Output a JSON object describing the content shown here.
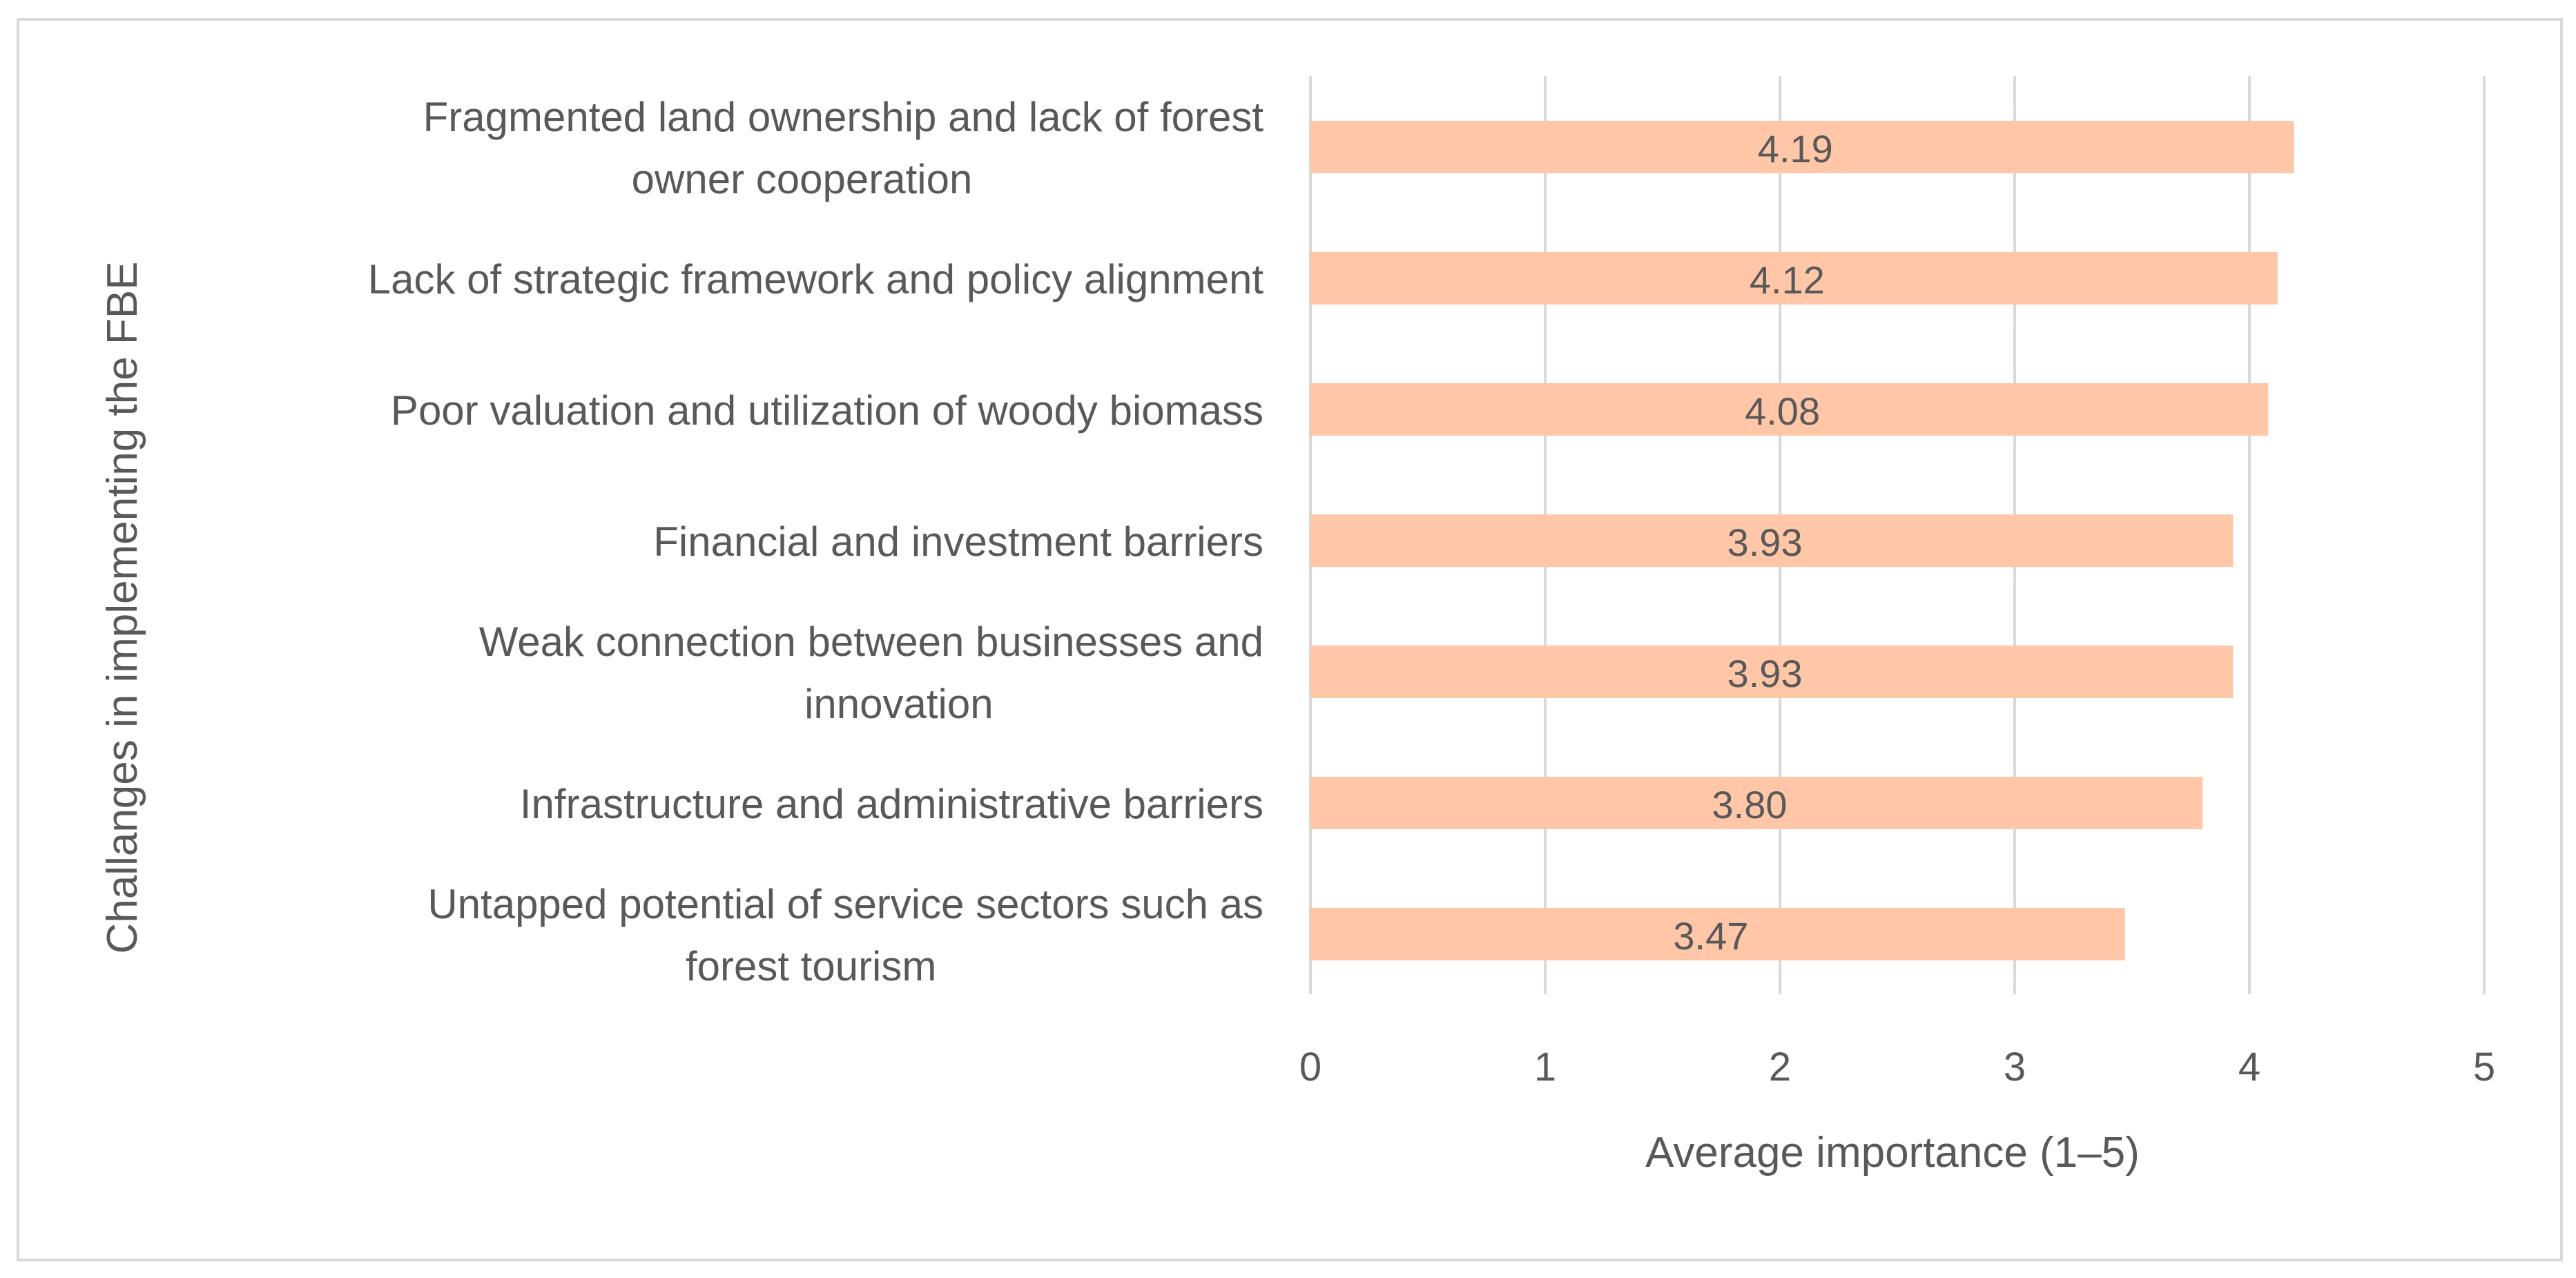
{
  "chart_data": {
    "type": "bar",
    "orientation": "horizontal",
    "categories": [
      "Fragmented land ownership and lack of forest owner cooperation",
      "Lack of strategic framework and policy alignment",
      "Poor valuation and utilization of woody biomass",
      "Financial and investment barriers",
      "Weak connection between businesses and innovation",
      "Infrastructure and administrative barriers",
      "Untapped potential of service sectors such as forest tourism"
    ],
    "category_lines": [
      [
        "Fragmented land ownership and lack of forest",
        "owner cooperation"
      ],
      [
        "Lack of strategic framework and policy alignment"
      ],
      [
        "Poor valuation and utilization of woody biomass"
      ],
      [
        "Financial and investment barriers"
      ],
      [
        "Weak connection between businesses and",
        "innovation"
      ],
      [
        "Infrastructure and administrative barriers"
      ],
      [
        "Untapped potential of service sectors such as",
        "forest tourism"
      ]
    ],
    "values": [
      4.19,
      4.12,
      4.08,
      3.93,
      3.93,
      3.8,
      3.47
    ],
    "data_labels": [
      "4.19",
      "4.12",
      "4.08",
      "3.93",
      "3.93",
      "3.80",
      "3.47"
    ],
    "xlabel": "Average importance (1–5)",
    "ylabel": "Challanges in implementing the FBE",
    "xlim": [
      0,
      5
    ],
    "xticks": [
      "0",
      "1",
      "2",
      "3",
      "4",
      "5"
    ],
    "grid": true,
    "legend": "none",
    "colors": {
      "bar": "#FFC7A8",
      "grid": "#D9D9D9",
      "text": "#595959",
      "frame": "#D9D9D9"
    }
  }
}
